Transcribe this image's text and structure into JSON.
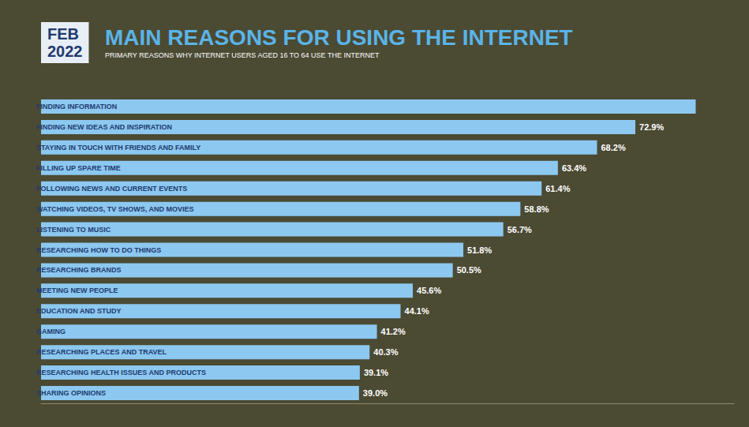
{
  "chart_data": {
    "type": "bar",
    "orientation": "horizontal",
    "date": "FEB 2022",
    "title": "MAIN REASONS FOR USING THE INTERNET",
    "subtitle": "PRIMARY REASONS WHY INTERNET USERS AGED 16 TO 64 USE THE INTERNET",
    "categories": [
      "FINDING INFORMATION",
      "FINDING NEW IDEAS AND INSPIRATION",
      "STAYING IN TOUCH WITH FRIENDS AND FAMILY",
      "FILLING UP SPARE TIME",
      "FOLLOWING NEWS AND CURRENT EVENTS",
      "WATCHING VIDEOS, TV SHOWS, AND MOVIES",
      "LISTENING TO MUSIC",
      "RESEARCHING HOW TO DO THINGS",
      "RESEARCHING BRANDS",
      "MEETING NEW PEOPLE",
      "EDUCATION AND STUDY",
      "GAMING",
      "RESEARCHING PLACES AND TRAVEL",
      "RESEARCHING HEALTH ISSUES AND PRODUCTS",
      "SHARING OPINIONS"
    ],
    "values": [
      80.3,
      72.9,
      68.2,
      63.4,
      61.4,
      58.8,
      56.7,
      51.8,
      50.5,
      45.6,
      44.1,
      41.2,
      40.3,
      39.1,
      39.0
    ],
    "value_labels": [
      null,
      "72.9%",
      "68.2%",
      "63.4%",
      "61.4%",
      "58.8%",
      "56.7%",
      "51.8%",
      "50.5%",
      "45.6%",
      "44.1%",
      "41.2%",
      "40.3%",
      "39.1%",
      "39.0%"
    ],
    "data_labels": true,
    "color": "#8cc8f0",
    "xlim": [
      0,
      85
    ],
    "tick_labels": false,
    "grid": false
  }
}
